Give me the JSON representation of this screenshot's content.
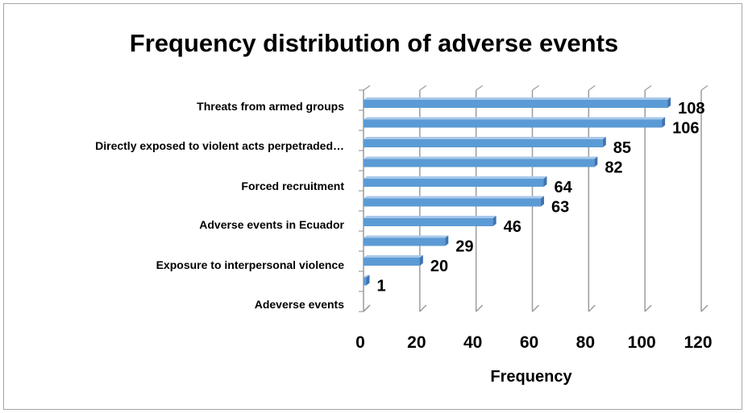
{
  "chart_data": {
    "type": "bar",
    "orientation": "horizontal",
    "title": "Frequency distribution of adverse events",
    "xlabel": "Frequency",
    "ylabel": "",
    "xlim": [
      0,
      120
    ],
    "xticks": [
      0,
      20,
      40,
      60,
      80,
      100,
      120
    ],
    "grid": true,
    "legend": "none",
    "bar_color": "#5b9bd5",
    "category_labels_shown": [
      "Threats from armed groups",
      "Directly exposed to violent acts perpetraded…",
      "Forced recruitment",
      "Adverse events in Ecuador",
      "Exposure to interpersonal violence",
      "Adeverse events"
    ],
    "values": [
      108,
      106,
      85,
      82,
      64,
      63,
      46,
      29,
      20,
      1
    ]
  }
}
